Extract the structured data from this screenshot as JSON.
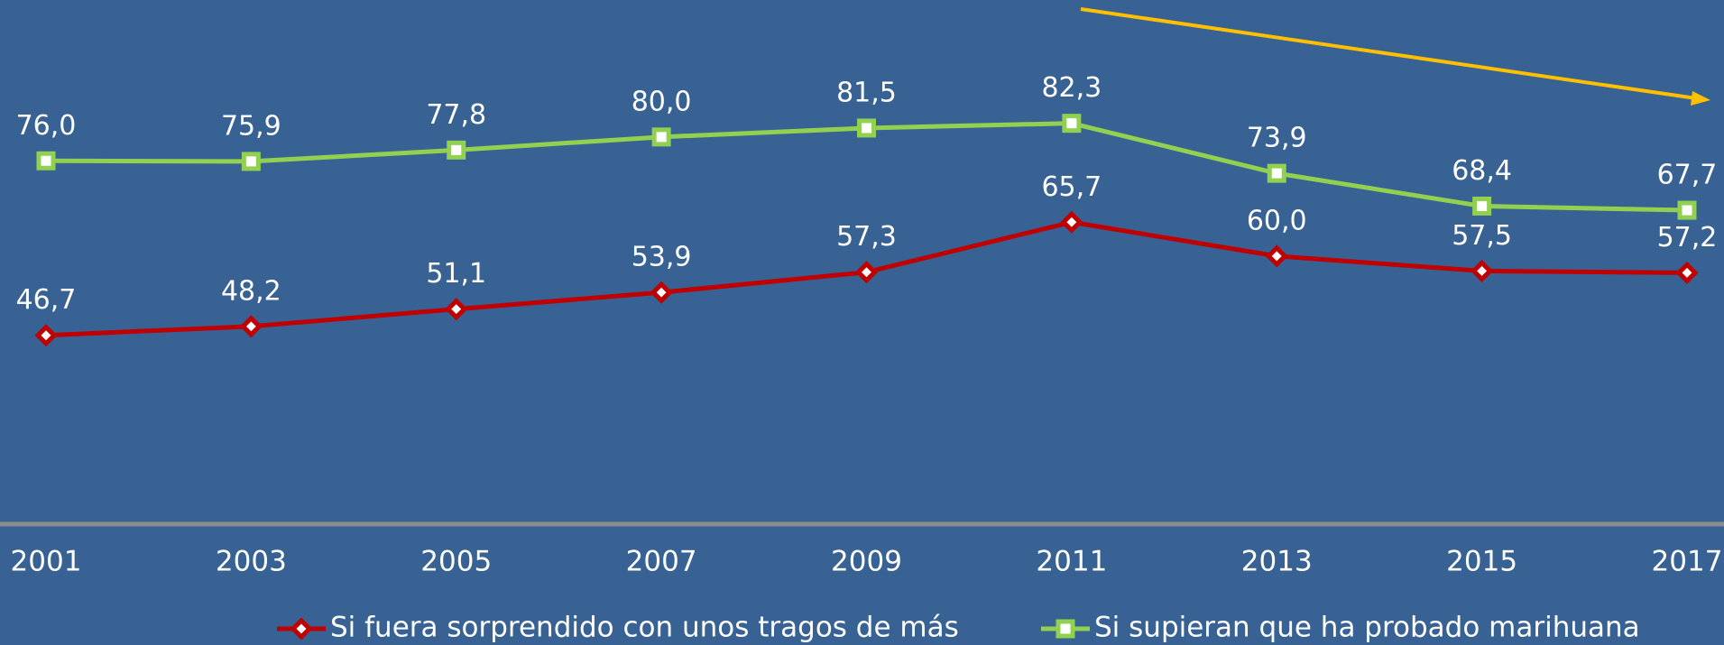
{
  "chart_data": {
    "type": "line",
    "categories": [
      "2001",
      "2003",
      "2005",
      "2007",
      "2009",
      "2011",
      "2013",
      "2015",
      "2017"
    ],
    "series": [
      {
        "name": "Si fuera sorprendido con unos tragos de más",
        "color": "#c00000",
        "marker": "diamond",
        "values": [
          46.7,
          48.2,
          51.1,
          53.9,
          57.3,
          65.7,
          60.0,
          57.5,
          57.2
        ],
        "value_labels": [
          "46,7",
          "48,2",
          "51,1",
          "53,9",
          "57,3",
          "65,7",
          "60,0",
          "57,5",
          "57,2"
        ]
      },
      {
        "name": "Si supieran que ha probado marihuana",
        "color": "#92d050",
        "marker": "square",
        "values": [
          76.0,
          75.9,
          77.8,
          80.0,
          81.5,
          82.3,
          73.9,
          68.4,
          67.7
        ],
        "value_labels": [
          "76,0",
          "75,9",
          "77,8",
          "80,0",
          "81,5",
          "82,3",
          "73,9",
          "68,4",
          "67,7"
        ]
      }
    ],
    "ylim": [
      15,
      103
    ]
  }
}
